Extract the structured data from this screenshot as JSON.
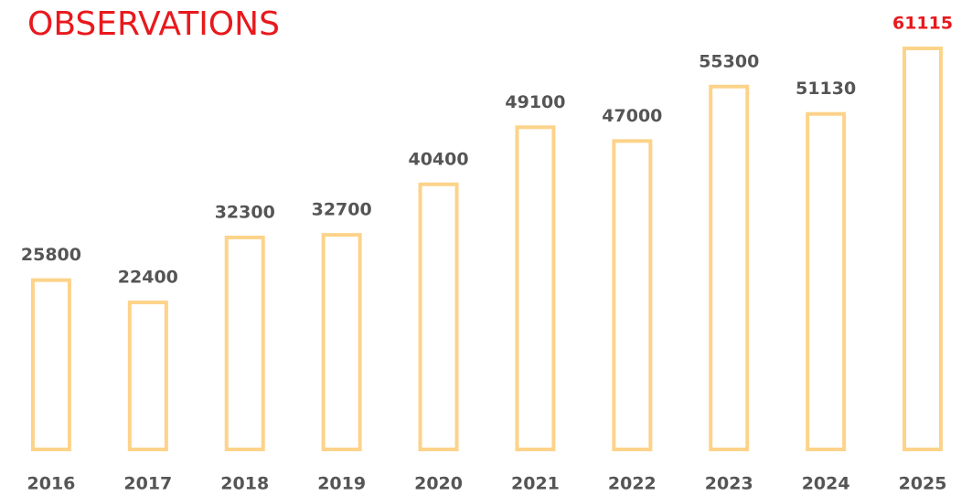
{
  "chart_data": {
    "type": "bar",
    "title": "OBSERVATIONS",
    "categories": [
      "2016",
      "2017",
      "2018",
      "2019",
      "2020",
      "2021",
      "2022",
      "2023",
      "2024",
      "2025"
    ],
    "values": [
      25800,
      22400,
      32300,
      32700,
      40400,
      49100,
      47000,
      55300,
      51130,
      61115
    ],
    "color": "#fdd38a",
    "title_color": "#e8191d",
    "label_colors": [
      "#555555",
      "#555555",
      "#555555",
      "#555555",
      "#555555",
      "#555555",
      "#555555",
      "#555555",
      "#555555",
      "#e8191d"
    ],
    "grid": false
  }
}
